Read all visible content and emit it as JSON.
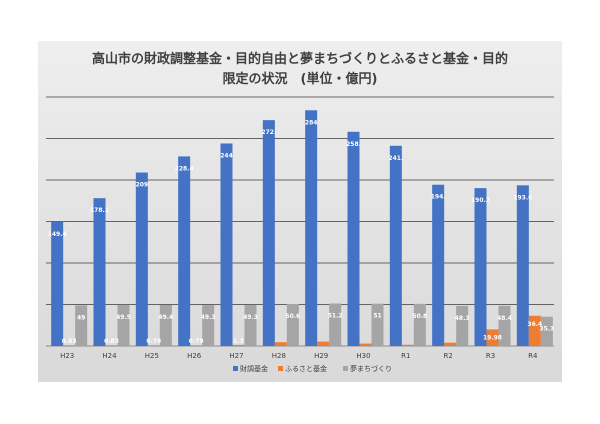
{
  "chart_data": {
    "type": "bar",
    "title": "高山市の財政調整基金・目的自由と夢まちづくりとふるさと基金・目的限定の状況 (単位・億円)",
    "title_lines": [
      "高山市の財政調整基金・目的自由と夢まちづくりとふるさと基金・目的",
      "限定の状況　(単位・億円)"
    ],
    "xlabel": "",
    "ylabel": "",
    "ylim": [
      0,
      300
    ],
    "y_ticks": [
      0,
      50,
      100,
      150,
      200,
      250,
      300
    ],
    "y_tick_labels_shown": false,
    "grid": true,
    "legend_position": "bottom",
    "categories": [
      "H23",
      "H24",
      "H25",
      "H26",
      "H27",
      "H28",
      "H29",
      "H30",
      "R1",
      "R2",
      "R3",
      "R4"
    ],
    "series": [
      {
        "name": "財調基金",
        "color": "#4472c4",
        "values": [
          149.4,
          178.1,
          209,
          228.4,
          244,
          272.1,
          284,
          258.1,
          241.2,
          194.3,
          190.2,
          193.6
        ],
        "labels": [
          "149.4",
          "178.1",
          "209",
          "228.4",
          "244",
          "272.",
          "284",
          "258.",
          "241.",
          "194.",
          "190.2",
          "193.6"
        ]
      },
      {
        "name": "ふるさと基金",
        "color": "#ed7d31",
        "values": [
          0.83,
          0.83,
          0.79,
          0.79,
          1.3,
          4.6,
          5.3,
          2.9,
          1.5,
          4.0,
          19.98,
          36.4
        ],
        "labels": [
          "0.83",
          "0.83",
          "0.79",
          "0.79",
          "1.3",
          "",
          "",
          "",
          "",
          "",
          "19.98",
          "36.4"
        ]
      },
      {
        "name": "夢まちづくり",
        "color": "#a5a5a5",
        "values": [
          49,
          49.5,
          49.4,
          49.3,
          49.3,
          50.6,
          51.2,
          51,
          50.8,
          48.3,
          48.4,
          35.3
        ],
        "labels": [
          "49",
          "49.5",
          "49.4",
          "49.3",
          "49.3",
          "50.6",
          "51.2",
          "51",
          "50.8",
          "48.3",
          "48.4",
          "35.3"
        ]
      }
    ]
  }
}
